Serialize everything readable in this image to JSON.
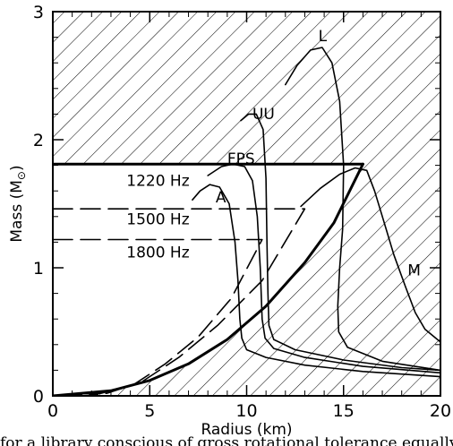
{
  "chart_data": {
    "type": "line",
    "xlabel": "Radius (km)",
    "ylabel_main": "Mass (M",
    "ylabel_sub": "⊙",
    "ylabel_close": ")",
    "xlim": [
      0,
      20
    ],
    "ylim": [
      0,
      3
    ],
    "xticks": [
      "0",
      "5",
      "10",
      "15",
      "20"
    ],
    "yticks": [
      "0",
      "1",
      "2",
      "3"
    ],
    "hatched_regions": [
      "upper-excluded",
      "lower-right-excluded"
    ],
    "series": [
      {
        "name": "A",
        "style": "solid",
        "points": [
          [
            7.2,
            1.53
          ],
          [
            7.6,
            1.6
          ],
          [
            8.1,
            1.65
          ],
          [
            8.6,
            1.63
          ],
          [
            9.1,
            1.5
          ],
          [
            9.4,
            1.2
          ],
          [
            9.55,
            0.9
          ],
          [
            9.65,
            0.6
          ],
          [
            9.75,
            0.45
          ],
          [
            10.0,
            0.36
          ],
          [
            11.0,
            0.3
          ],
          [
            13.0,
            0.24
          ],
          [
            16.0,
            0.19
          ],
          [
            20.0,
            0.15
          ]
        ]
      },
      {
        "name": "FPS",
        "style": "solid",
        "points": [
          [
            8.0,
            1.72
          ],
          [
            8.7,
            1.79
          ],
          [
            9.3,
            1.81
          ],
          [
            9.9,
            1.79
          ],
          [
            10.3,
            1.68
          ],
          [
            10.55,
            1.4
          ],
          [
            10.7,
            1.0
          ],
          [
            10.8,
            0.6
          ],
          [
            10.95,
            0.45
          ],
          [
            11.4,
            0.37
          ],
          [
            13.0,
            0.3
          ],
          [
            16.0,
            0.23
          ],
          [
            20.0,
            0.18
          ]
        ]
      },
      {
        "name": "UU",
        "style": "solid",
        "points": [
          [
            9.7,
            2.15
          ],
          [
            10.1,
            2.2
          ],
          [
            10.5,
            2.2
          ],
          [
            10.85,
            2.08
          ],
          [
            11.0,
            1.7
          ],
          [
            11.05,
            1.2
          ],
          [
            11.1,
            0.8
          ],
          [
            11.15,
            0.55
          ],
          [
            11.4,
            0.44
          ],
          [
            12.5,
            0.36
          ],
          [
            15.0,
            0.28
          ],
          [
            18.0,
            0.22
          ],
          [
            20.0,
            0.2
          ]
        ]
      },
      {
        "name": "L",
        "style": "solid",
        "points": [
          [
            12.0,
            2.43
          ],
          [
            12.6,
            2.58
          ],
          [
            13.3,
            2.7
          ],
          [
            13.9,
            2.72
          ],
          [
            14.4,
            2.6
          ],
          [
            14.8,
            2.3
          ],
          [
            15.0,
            1.8
          ],
          [
            14.95,
            1.3
          ],
          [
            14.8,
            1.0
          ],
          [
            14.7,
            0.7
          ],
          [
            14.75,
            0.5
          ],
          [
            15.2,
            0.38
          ],
          [
            17.0,
            0.27
          ],
          [
            20.0,
            0.2
          ]
        ]
      },
      {
        "name": "M",
        "style": "solid",
        "points": [
          [
            12.8,
            1.48
          ],
          [
            13.8,
            1.62
          ],
          [
            14.8,
            1.73
          ],
          [
            15.6,
            1.78
          ],
          [
            16.2,
            1.76
          ],
          [
            16.6,
            1.6
          ],
          [
            17.0,
            1.4
          ],
          [
            17.6,
            1.1
          ],
          [
            18.2,
            0.85
          ],
          [
            18.7,
            0.65
          ],
          [
            19.2,
            0.52
          ],
          [
            20.0,
            0.42
          ]
        ]
      },
      {
        "name": "1500 Hz",
        "style": "dashed",
        "points": [
          [
            0,
            1.46
          ],
          [
            13.0,
            1.46
          ],
          [
            10.8,
            0.9
          ],
          [
            8.5,
            0.55
          ],
          [
            6.5,
            0.3
          ],
          [
            4.5,
            0.1
          ],
          [
            2.5,
            0.02
          ],
          [
            1.0,
            0.0
          ]
        ]
      },
      {
        "name": "1800 Hz",
        "style": "dashed",
        "points": [
          [
            0,
            1.22
          ],
          [
            10.8,
            1.22
          ],
          [
            9.2,
            0.76
          ],
          [
            7.5,
            0.46
          ],
          [
            5.8,
            0.25
          ],
          [
            4.2,
            0.09
          ],
          [
            2.8,
            0.02
          ],
          [
            1.5,
            0.0
          ]
        ]
      },
      {
        "name": "1220 Hz",
        "style": "bold",
        "points": [
          [
            0,
            1.81
          ],
          [
            16.0,
            1.81
          ]
        ]
      },
      {
        "name": "1220 Hz mass-shedding",
        "style": "bold",
        "points": [
          [
            0,
            0
          ],
          [
            3,
            0.04
          ],
          [
            5,
            0.12
          ],
          [
            7,
            0.25
          ],
          [
            9,
            0.44
          ],
          [
            11,
            0.7
          ],
          [
            13,
            1.04
          ],
          [
            14.5,
            1.35
          ],
          [
            16,
            1.81
          ]
        ]
      }
    ],
    "annotations": [
      {
        "text": "A",
        "x": 8.4,
        "y": 1.51
      },
      {
        "text": "FPS",
        "x": 9.0,
        "y": 1.81
      },
      {
        "text": "UU",
        "x": 10.3,
        "y": 2.16
      },
      {
        "text": "L",
        "x": 13.7,
        "y": 2.77
      },
      {
        "text": "M",
        "x": 18.3,
        "y": 0.94
      },
      {
        "text": "1220 Hz",
        "x": 3.8,
        "y": 1.64
      },
      {
        "text": "1500 Hz",
        "x": 3.8,
        "y": 1.34
      },
      {
        "text": "1800 Hz",
        "x": 3.8,
        "y": 1.08
      }
    ]
  },
  "caption": "for a library conscious of gross rotational tolerance equally spac"
}
